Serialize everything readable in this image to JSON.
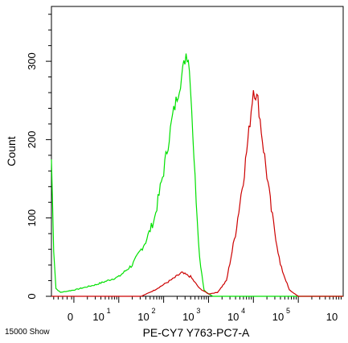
{
  "chart_data": {
    "type": "line",
    "title": "",
    "xlabel": "PE-CY7 Y763-PC7-A",
    "ylabel": "Count",
    "footnote": "15000 Show",
    "x_scale": "log",
    "xlim_decades": [
      -0.5,
      6
    ],
    "ylim": [
      0,
      370
    ],
    "x_ticks": [
      {
        "label": "0",
        "exp": ""
      },
      {
        "label": "10",
        "exp": "1"
      },
      {
        "label": "10",
        "exp": "2"
      },
      {
        "label": "10",
        "exp": "3"
      },
      {
        "label": "10",
        "exp": "4"
      },
      {
        "label": "10",
        "exp": "5"
      },
      {
        "label": "10",
        "exp": ""
      }
    ],
    "y_ticks": [
      "0",
      "100",
      "200",
      "300"
    ],
    "series": [
      {
        "color": "#00e000",
        "x": [
          -0.5,
          -0.45,
          -0.4,
          -0.3,
          0,
          0.5,
          1.0,
          1.3,
          1.6,
          1.8,
          2.0,
          2.2,
          2.4,
          2.5,
          2.55,
          2.6,
          2.7,
          2.8,
          2.9,
          3.0,
          3.1,
          6.0
        ],
        "y": [
          175,
          60,
          10,
          5,
          8,
          15,
          25,
          40,
          70,
          100,
          160,
          230,
          280,
          310,
          305,
          270,
          150,
          50,
          8,
          3,
          0,
          0
        ]
      },
      {
        "color": "#cc0000",
        "x": [
          -0.5,
          1.5,
          1.8,
          2.0,
          2.2,
          2.4,
          2.6,
          2.8,
          3.0,
          3.2,
          3.4,
          3.6,
          3.8,
          3.9,
          4.0,
          4.1,
          4.2,
          4.4,
          4.6,
          4.8,
          5.0,
          6.0
        ],
        "y": [
          0,
          0,
          8,
          15,
          22,
          30,
          25,
          10,
          3,
          5,
          20,
          80,
          160,
          210,
          265,
          250,
          200,
          110,
          40,
          8,
          0,
          0
        ]
      }
    ]
  }
}
